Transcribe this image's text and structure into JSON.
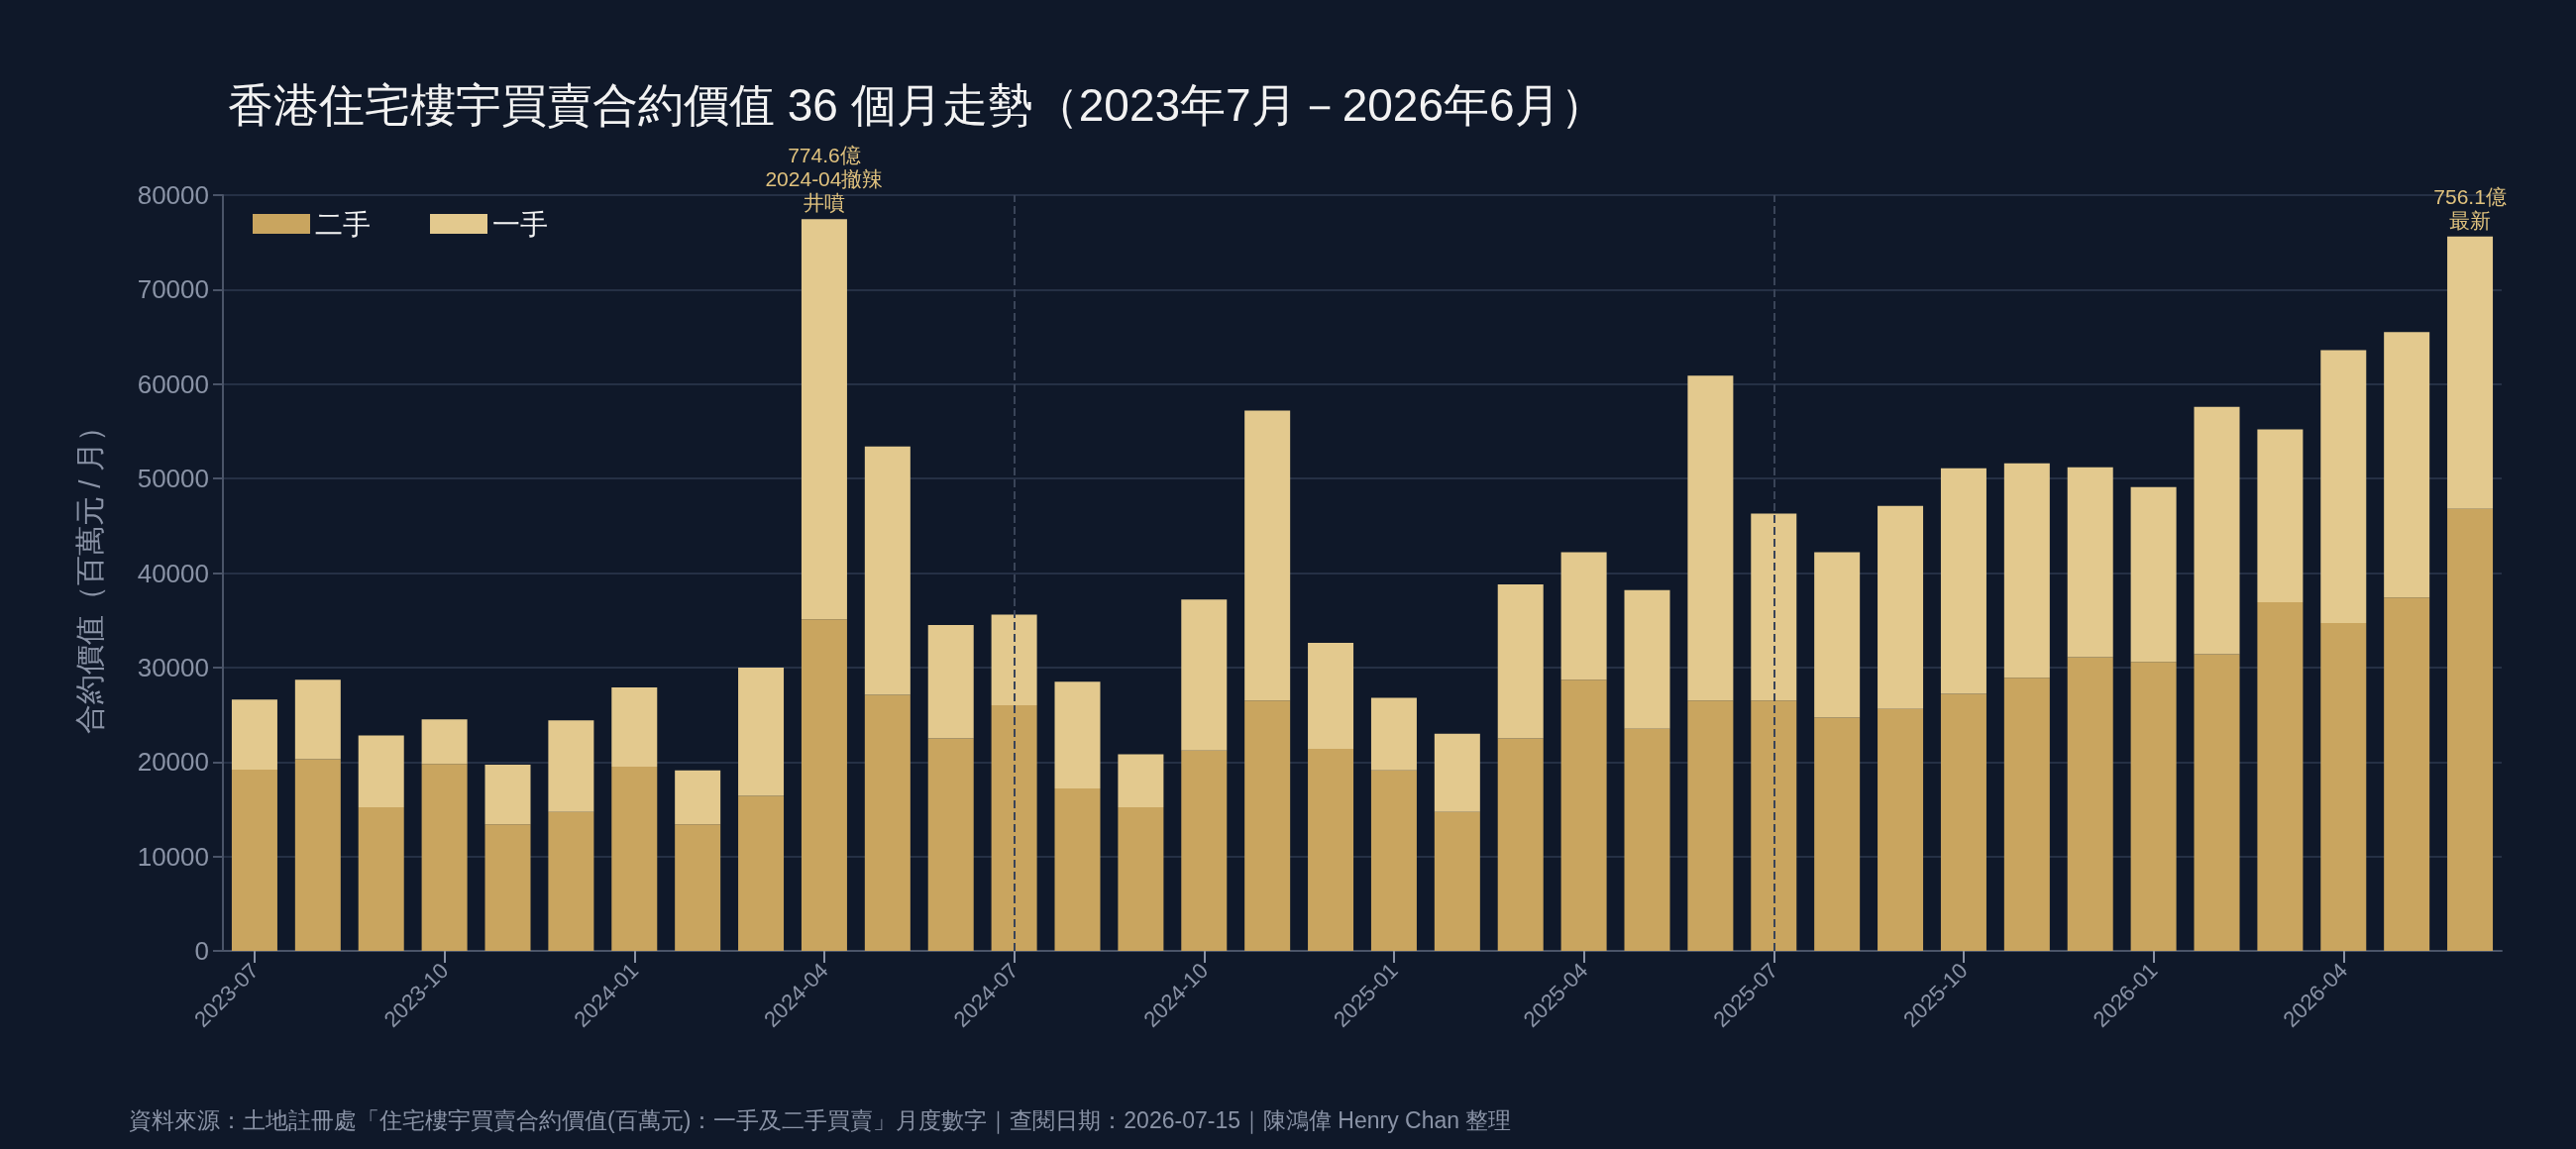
{
  "chart_data": {
    "type": "bar",
    "stacked": true,
    "title": "香港住宅樓宇買賣合約價值 36 個月走勢（2023年7月－2026年6月）",
    "ylabel": "合約價值（百萬元 / 月）",
    "categories": [
      "2023-07",
      null,
      null,
      "2023-10",
      null,
      null,
      "2024-01",
      null,
      null,
      "2024-04",
      null,
      null,
      "2024-07",
      null,
      null,
      "2024-10",
      null,
      null,
      "2025-01",
      null,
      null,
      "2025-04",
      null,
      null,
      "2025-07",
      null,
      null,
      "2025-10",
      null,
      null,
      "2026-01",
      null,
      null,
      "2026-04",
      null,
      null
    ],
    "series": [
      {
        "name": "二手",
        "color": "#c9a55f",
        "values": [
          19200,
          20300,
          15200,
          19800,
          13400,
          14700,
          19500,
          13400,
          16400,
          35100,
          27100,
          22500,
          26000,
          17200,
          15200,
          21200,
          26500,
          21400,
          19100,
          14700,
          22500,
          28700,
          23500,
          26500,
          26500,
          24700,
          25600,
          27200,
          28900,
          31100,
          30600,
          31400,
          36900,
          34700,
          37400,
          46800
        ]
      },
      {
        "name": "一手",
        "color": "#e3c98e",
        "values": [
          7400,
          8400,
          7600,
          4700,
          6300,
          9700,
          8400,
          5700,
          13600,
          42360,
          26300,
          12000,
          9600,
          11300,
          5600,
          16000,
          30700,
          11200,
          7700,
          8300,
          16300,
          13500,
          14700,
          34400,
          19800,
          17500,
          21500,
          23900,
          22700,
          20100,
          18500,
          26200,
          18300,
          28900,
          28100,
          28810
        ]
      }
    ],
    "ylim": [
      0,
      80000
    ],
    "yticks": [
      0,
      10000,
      20000,
      30000,
      40000,
      50000,
      60000,
      70000,
      80000
    ],
    "grid": "y",
    "legend": "top left",
    "ref_lines": [
      {
        "axis": "x",
        "value": "2024-07",
        "line_style": "dashed"
      },
      {
        "axis": "x",
        "value": "2025-07",
        "line_style": "dashed"
      }
    ],
    "annotations": [
      {
        "text": "774.6億",
        "x": "2024-04",
        "y": 77460
      },
      {
        "text": "2024-04撤辣",
        "x": "2024-04",
        "y": 77460
      },
      {
        "text": "井噴",
        "x": "2024-04",
        "y": 77460
      },
      {
        "text": "756.1億",
        "y": 75610
      },
      {
        "text": "最新",
        "y": 75610
      },
      "資料來源：土地註冊處「住宅樓宇買賣合約價值(百萬元)：一手及二手買賣」月度數字｜查閱日期：2026-07-15｜陳鴻偉 Henry Chan 整理"
    ]
  }
}
